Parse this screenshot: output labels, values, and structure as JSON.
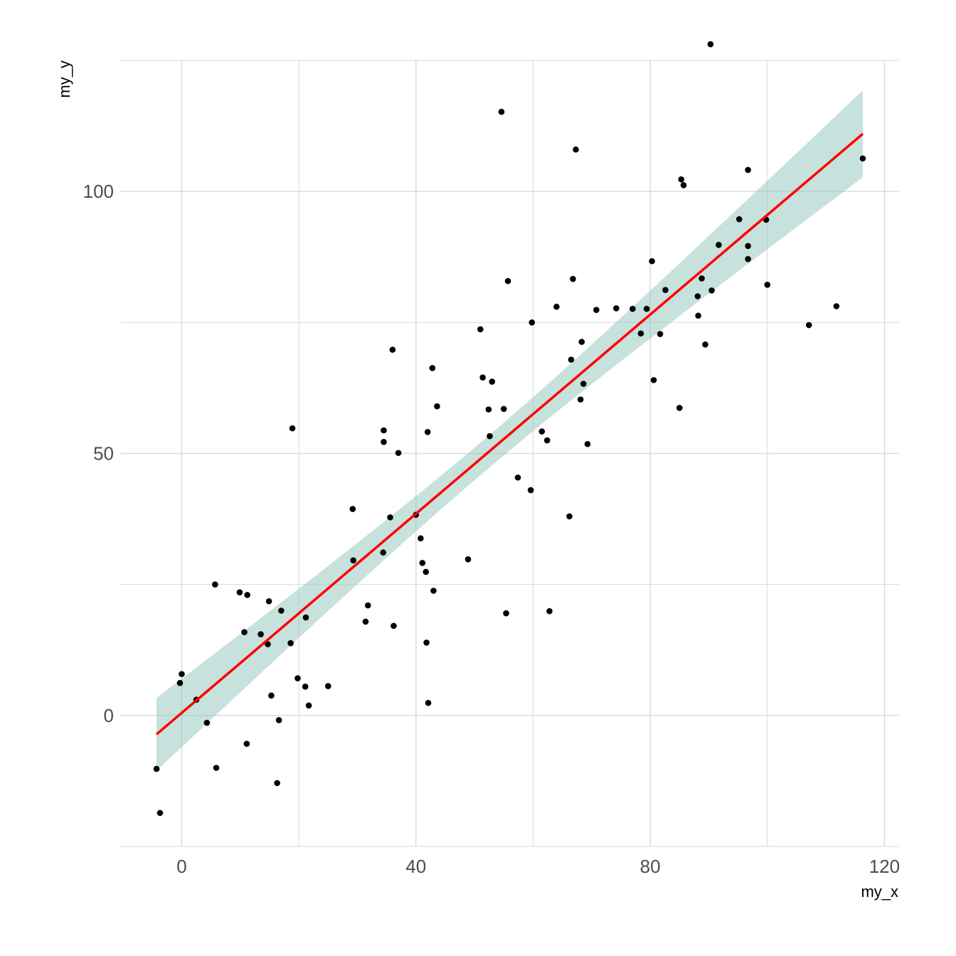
{
  "chart_data": {
    "type": "scatter",
    "xlabel": "my_x",
    "ylabel": "my_y",
    "xlim": [
      -10.5,
      122.5
    ],
    "ylim": [
      -25,
      125
    ],
    "x_ticks": [
      0,
      40,
      80,
      120
    ],
    "x_ticks_minor": [
      20,
      60,
      100
    ],
    "y_ticks": [
      0,
      50,
      100
    ],
    "y_ticks_minor": [
      -25,
      25,
      75,
      125
    ],
    "grid": true,
    "colors": {
      "points": "#000000",
      "fit_line": "#ff0000",
      "confidence_band": "#8fc5bb",
      "grid": "#d9d9d9"
    },
    "fit": {
      "method": "lm",
      "x": [
        -4.3,
        116.3
      ],
      "y": [
        -3.6,
        111.0
      ],
      "band": [
        {
          "x": -4.3,
          "lower": -10.4,
          "upper": 3.5
        },
        {
          "x": 116.3,
          "lower": 102.4,
          "upper": 119.0
        }
      ]
    },
    "points": [
      {
        "x": -4.3,
        "y": -10.2
      },
      {
        "x": -3.7,
        "y": -18.6
      },
      {
        "x": -0.3,
        "y": 6.2
      },
      {
        "x": 0.0,
        "y": 7.9
      },
      {
        "x": 2.5,
        "y": 3.0
      },
      {
        "x": 4.3,
        "y": -1.4
      },
      {
        "x": 5.7,
        "y": 25.0
      },
      {
        "x": 5.9,
        "y": -10.0
      },
      {
        "x": 9.9,
        "y": 23.5
      },
      {
        "x": 10.7,
        "y": 15.9
      },
      {
        "x": 11.1,
        "y": -5.4
      },
      {
        "x": 11.2,
        "y": 23.0
      },
      {
        "x": 13.5,
        "y": 15.5
      },
      {
        "x": 14.7,
        "y": 13.6
      },
      {
        "x": 14.9,
        "y": 21.8
      },
      {
        "x": 15.3,
        "y": 3.8
      },
      {
        "x": 16.6,
        "y": -0.9
      },
      {
        "x": 16.3,
        "y": -12.9
      },
      {
        "x": 17.0,
        "y": 20.0
      },
      {
        "x": 18.6,
        "y": 13.8
      },
      {
        "x": 18.9,
        "y": 54.8
      },
      {
        "x": 19.8,
        "y": 7.1
      },
      {
        "x": 21.1,
        "y": 5.5
      },
      {
        "x": 21.2,
        "y": 18.7
      },
      {
        "x": 21.7,
        "y": 1.9
      },
      {
        "x": 25.0,
        "y": 5.6
      },
      {
        "x": 29.2,
        "y": 39.4
      },
      {
        "x": 29.3,
        "y": 29.6
      },
      {
        "x": 31.4,
        "y": 17.9
      },
      {
        "x": 31.8,
        "y": 21.0
      },
      {
        "x": 34.4,
        "y": 31.1
      },
      {
        "x": 34.5,
        "y": 54.4
      },
      {
        "x": 34.5,
        "y": 52.2
      },
      {
        "x": 35.6,
        "y": 37.8
      },
      {
        "x": 36.0,
        "y": 69.8
      },
      {
        "x": 36.2,
        "y": 17.1
      },
      {
        "x": 37.0,
        "y": 50.1
      },
      {
        "x": 40.0,
        "y": 38.3
      },
      {
        "x": 40.8,
        "y": 33.8
      },
      {
        "x": 41.1,
        "y": 29.1
      },
      {
        "x": 41.7,
        "y": 27.4
      },
      {
        "x": 41.8,
        "y": 13.9
      },
      {
        "x": 42.0,
        "y": 54.1
      },
      {
        "x": 42.1,
        "y": 2.4
      },
      {
        "x": 42.8,
        "y": 66.3
      },
      {
        "x": 43.0,
        "y": 23.8
      },
      {
        "x": 43.6,
        "y": 59.0
      },
      {
        "x": 48.9,
        "y": 29.8
      },
      {
        "x": 51.0,
        "y": 73.7
      },
      {
        "x": 51.4,
        "y": 64.5
      },
      {
        "x": 52.4,
        "y": 58.4
      },
      {
        "x": 52.6,
        "y": 53.3
      },
      {
        "x": 53.0,
        "y": 63.7
      },
      {
        "x": 54.6,
        "y": 115.2
      },
      {
        "x": 55.0,
        "y": 58.5
      },
      {
        "x": 55.4,
        "y": 19.5
      },
      {
        "x": 55.7,
        "y": 82.9
      },
      {
        "x": 57.4,
        "y": 45.4
      },
      {
        "x": 59.6,
        "y": 43.0
      },
      {
        "x": 59.8,
        "y": 75.0
      },
      {
        "x": 61.5,
        "y": 54.2
      },
      {
        "x": 62.4,
        "y": 52.5
      },
      {
        "x": 62.8,
        "y": 19.9
      },
      {
        "x": 64.0,
        "y": 78.0
      },
      {
        "x": 66.2,
        "y": 38.0
      },
      {
        "x": 66.5,
        "y": 67.9
      },
      {
        "x": 66.8,
        "y": 83.3
      },
      {
        "x": 67.3,
        "y": 108.0
      },
      {
        "x": 68.1,
        "y": 60.3
      },
      {
        "x": 68.3,
        "y": 71.3
      },
      {
        "x": 68.6,
        "y": 63.3
      },
      {
        "x": 69.3,
        "y": 51.8
      },
      {
        "x": 70.8,
        "y": 77.4
      },
      {
        "x": 74.2,
        "y": 77.7
      },
      {
        "x": 77.0,
        "y": 77.6
      },
      {
        "x": 78.4,
        "y": 72.9
      },
      {
        "x": 79.4,
        "y": 77.6
      },
      {
        "x": 80.3,
        "y": 86.7
      },
      {
        "x": 80.6,
        "y": 64.0
      },
      {
        "x": 81.7,
        "y": 72.8
      },
      {
        "x": 82.6,
        "y": 81.2
      },
      {
        "x": 85.0,
        "y": 58.7
      },
      {
        "x": 85.3,
        "y": 102.3
      },
      {
        "x": 85.7,
        "y": 101.2
      },
      {
        "x": 88.1,
        "y": 80.0
      },
      {
        "x": 88.2,
        "y": 76.3
      },
      {
        "x": 88.8,
        "y": 83.4
      },
      {
        "x": 89.4,
        "y": 70.8
      },
      {
        "x": 90.3,
        "y": 128.1
      },
      {
        "x": 90.5,
        "y": 81.1
      },
      {
        "x": 91.7,
        "y": 89.8
      },
      {
        "x": 95.2,
        "y": 94.7
      },
      {
        "x": 96.7,
        "y": 104.1
      },
      {
        "x": 96.7,
        "y": 89.6
      },
      {
        "x": 96.7,
        "y": 87.1
      },
      {
        "x": 99.8,
        "y": 94.6
      },
      {
        "x": 100.0,
        "y": 82.2
      },
      {
        "x": 107.1,
        "y": 74.5
      },
      {
        "x": 111.8,
        "y": 78.1
      },
      {
        "x": 116.3,
        "y": 106.3
      }
    ]
  }
}
